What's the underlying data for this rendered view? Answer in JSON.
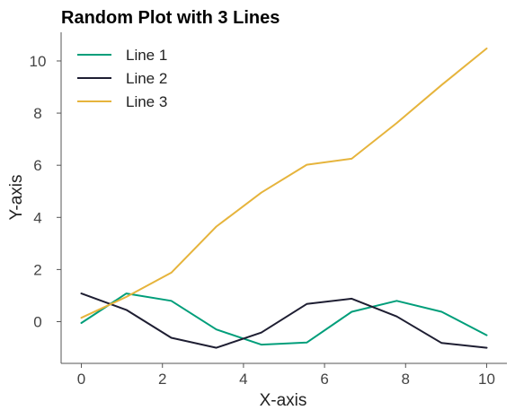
{
  "chart_data": {
    "type": "line",
    "title": "Random Plot with 3 Lines",
    "xlabel": "X-axis",
    "ylabel": "Y-axis",
    "xlim": [
      -0.5,
      10.5
    ],
    "ylim": [
      -1.6,
      11.1
    ],
    "xticks": [
      0,
      2,
      4,
      6,
      8,
      10
    ],
    "yticks": [
      0,
      2,
      4,
      6,
      8,
      10
    ],
    "grid": false,
    "legend_position": "top-left",
    "x": [
      0,
      1.11,
      2.22,
      3.33,
      4.44,
      5.56,
      6.67,
      7.78,
      8.89,
      10
    ],
    "series": [
      {
        "name": "Line 1",
        "color": "#009e7a",
        "values": [
          -0.05,
          1.08,
          0.8,
          -0.3,
          -0.88,
          -0.8,
          0.38,
          0.8,
          0.38,
          -0.52
        ]
      },
      {
        "name": "Line 2",
        "color": "#1e1e32",
        "values": [
          1.08,
          0.45,
          -0.62,
          -1.0,
          -0.42,
          0.68,
          0.88,
          0.2,
          -0.82,
          -1.0
        ]
      },
      {
        "name": "Line 3",
        "color": "#e6b43c",
        "values": [
          0.15,
          0.95,
          1.88,
          3.65,
          4.95,
          6.02,
          6.25,
          7.62,
          9.08,
          10.48
        ]
      }
    ]
  }
}
